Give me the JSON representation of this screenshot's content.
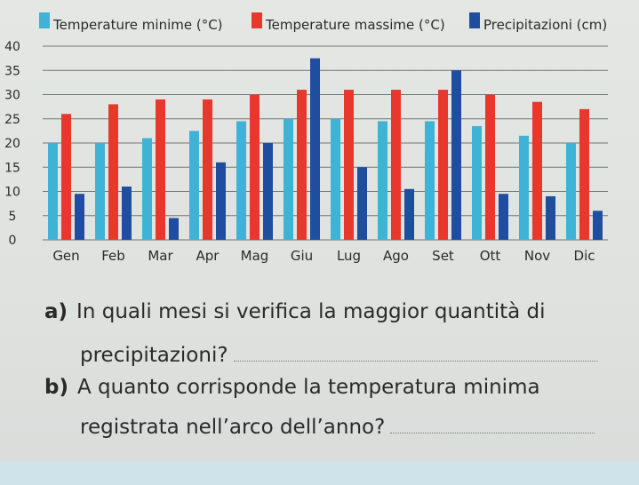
{
  "chart_data": {
    "type": "bar",
    "categories": [
      "Gen",
      "Feb",
      "Mar",
      "Apr",
      "Mag",
      "Giu",
      "Lug",
      "Ago",
      "Set",
      "Ott",
      "Nov",
      "Dic"
    ],
    "series": [
      {
        "name": "Temperature minime (°C)",
        "color": "#3fb3d6",
        "values": [
          20,
          20,
          21,
          22.5,
          24.5,
          25,
          25,
          24.5,
          24.5,
          23.5,
          21.5,
          20
        ]
      },
      {
        "name": "Temperature massime (°C)",
        "color": "#e8382e",
        "values": [
          26,
          28,
          29,
          29,
          30,
          31,
          31,
          31,
          31,
          30,
          28.5,
          27
        ]
      },
      {
        "name": "Precipitazioni (cm)",
        "color": "#1f4ea0",
        "values": [
          9.5,
          11,
          4.5,
          16,
          20,
          37.5,
          15,
          10.5,
          35,
          9.5,
          9,
          6
        ]
      }
    ],
    "yticks": [
      0,
      5,
      10,
      15,
      20,
      25,
      30,
      35,
      40
    ],
    "ylim": [
      0,
      40
    ],
    "grid": true,
    "legend": "top"
  },
  "questions": [
    {
      "label": "a)",
      "line1": "In quali mesi si verifica la maggior quantità di",
      "line2": "precipitazioni?"
    },
    {
      "label": "b)",
      "line1": "A quanto corrisponde la temperatura minima",
      "line2": "registrata nell’arco dell’anno?"
    }
  ]
}
